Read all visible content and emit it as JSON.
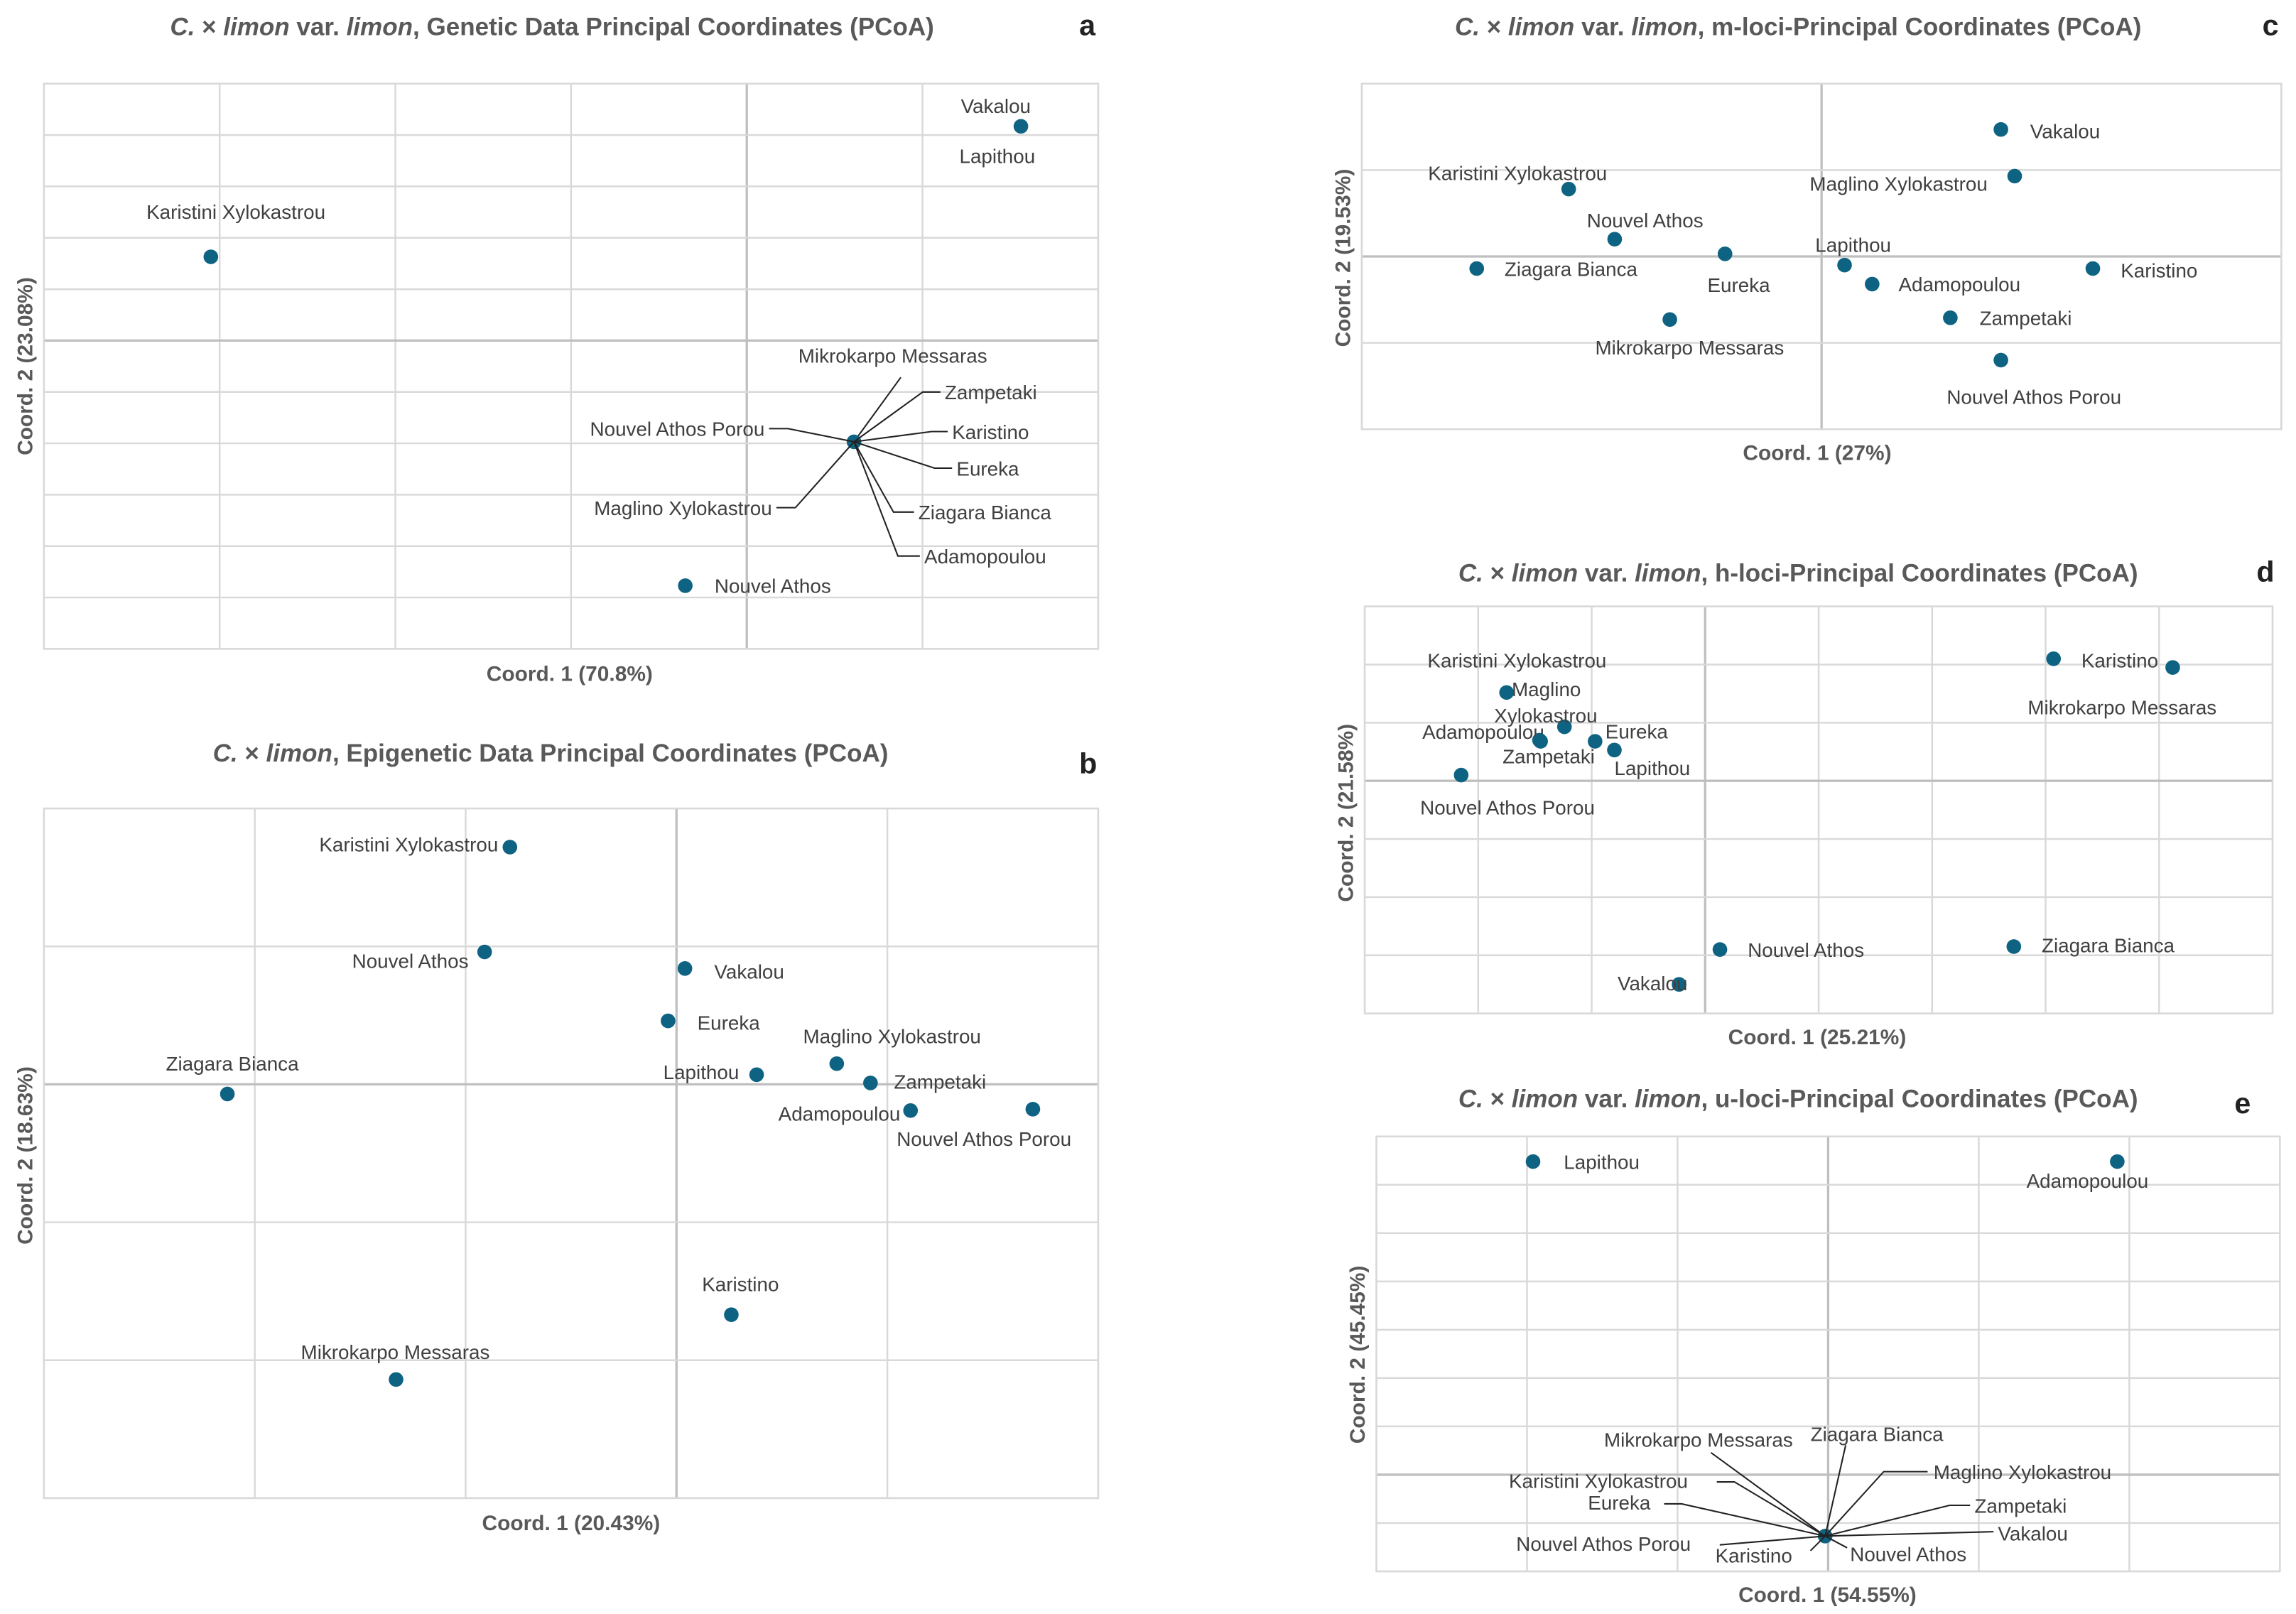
{
  "colors": {
    "point": "#0f6382",
    "grid": "#d9d9d9",
    "text": "#595959"
  },
  "chart_data": [
    {
      "id": "a",
      "type": "scatter",
      "panel_letter": "a",
      "title_parts": [
        {
          "t": "C.",
          "i": true
        },
        {
          "t": " × ",
          "i": false
        },
        {
          "t": "limon",
          "i": true
        },
        {
          "t": " var. ",
          "i": false
        },
        {
          "t": "limon",
          "i": true
        },
        {
          "t": ", Genetic Data Principal Coordinates (PCoA)",
          "i": false
        }
      ],
      "xlabel": "Coord. 1 (70.8%)",
      "ylabel": "Coord. 2 (23.08%)",
      "xlim": [
        -4,
        2
      ],
      "ylim": [
        -6,
        5
      ],
      "grid": true,
      "points": [
        {
          "name": "Vakalou",
          "x": 1.56,
          "y": 4.17
        },
        {
          "name": "Lapithou",
          "x": 1.56,
          "y": 4.17
        },
        {
          "name": "Karistini Xylokastrou",
          "x": -3.05,
          "y": 1.63
        },
        {
          "name": "Mikrokarpo Messaras",
          "x": 0.61,
          "y": -1.97
        },
        {
          "name": "Zampetaki",
          "x": 0.61,
          "y": -1.97
        },
        {
          "name": "Karistino",
          "x": 0.61,
          "y": -1.97
        },
        {
          "name": "Eureka",
          "x": 0.61,
          "y": -1.97
        },
        {
          "name": "Ziagara Bianca",
          "x": 0.61,
          "y": -1.97
        },
        {
          "name": "Adamopoulou",
          "x": 0.61,
          "y": -1.97
        },
        {
          "name": "Nouvel Athos Porou",
          "x": 0.61,
          "y": -1.97
        },
        {
          "name": "Maglino Xylokastrou",
          "x": 0.61,
          "y": -1.97
        },
        {
          "name": "Nouvel Athos",
          "x": -0.35,
          "y": -4.77
        }
      ]
    },
    {
      "id": "b",
      "type": "scatter",
      "panel_letter": "b",
      "title_parts": [
        {
          "t": "C.",
          "i": true
        },
        {
          "t": " × ",
          "i": false
        },
        {
          "t": "limon",
          "i": true
        },
        {
          "t": ", Epigenetic Data Principal Coordinates (PCoA)",
          "i": false
        }
      ],
      "xlabel": "Coord. 1 (20.43%)",
      "ylabel": "Coord. 2 (18.63%)",
      "xlim": [
        -3,
        2
      ],
      "ylim": [
        -3,
        2
      ],
      "grid": true,
      "points": [
        {
          "name": "Karistini Xylokastrou",
          "x": -0.79,
          "y": 1.72
        },
        {
          "name": "Nouvel Athos",
          "x": -0.91,
          "y": 0.96
        },
        {
          "name": "Vakalou",
          "x": 0.04,
          "y": 0.84
        },
        {
          "name": "Eureka",
          "x": -0.04,
          "y": 0.46
        },
        {
          "name": "Ziagara Bianca",
          "x": -2.13,
          "y": -0.07
        },
        {
          "name": "Maglino Xylokastrou",
          "x": 0.76,
          "y": 0.15
        },
        {
          "name": "Lapithou",
          "x": 0.38,
          "y": 0.07
        },
        {
          "name": "Zampetaki",
          "x": 0.92,
          "y": 0.01
        },
        {
          "name": "Adamopoulou",
          "x": 1.11,
          "y": -0.19
        },
        {
          "name": "Nouvel Athos Porou",
          "x": 1.69,
          "y": -0.18
        },
        {
          "name": "Karistino",
          "x": 0.26,
          "y": -1.67
        },
        {
          "name": "Mikrokarpo Messaras",
          "x": -1.33,
          "y": -2.14
        }
      ]
    },
    {
      "id": "c",
      "type": "scatter",
      "panel_letter": "c",
      "title_parts": [
        {
          "t": "C.",
          "i": true
        },
        {
          "t": " × ",
          "i": false
        },
        {
          "t": "limon",
          "i": true
        },
        {
          "t": " var. ",
          "i": false
        },
        {
          "t": "limon",
          "i": true
        },
        {
          "t": ", m-loci-Principal Coordinates (PCoA)",
          "i": false
        }
      ],
      "xlabel": "Coord. 1 (27%)",
      "ylabel": "Coord. 2 (19.53%)",
      "xlim": [
        -1,
        1
      ],
      "ylim": [
        -2,
        2
      ],
      "grid": true,
      "points": [
        {
          "name": "Vakalou",
          "x": 0.39,
          "y": 1.47
        },
        {
          "name": "Maglino Xylokastrou",
          "x": 0.42,
          "y": 0.93
        },
        {
          "name": "Karistini Xylokastrou",
          "x": -0.55,
          "y": 0.78
        },
        {
          "name": "Nouvel Athos",
          "x": -0.45,
          "y": 0.2
        },
        {
          "name": "Eureka",
          "x": -0.21,
          "y": 0.03
        },
        {
          "name": "Ziagara Bianca",
          "x": -0.75,
          "y": -0.14
        },
        {
          "name": "Lapithou",
          "x": 0.05,
          "y": -0.1
        },
        {
          "name": "Karistino",
          "x": 0.59,
          "y": -0.14
        },
        {
          "name": "Adamopoulou",
          "x": 0.11,
          "y": -0.32
        },
        {
          "name": "Mikrokarpo Messaras",
          "x": -0.33,
          "y": -0.73
        },
        {
          "name": "Zampetaki",
          "x": 0.28,
          "y": -0.71
        },
        {
          "name": "Nouvel Athos Porou",
          "x": 0.39,
          "y": -1.2
        }
      ]
    },
    {
      "id": "d",
      "type": "scatter",
      "panel_letter": "d",
      "title_parts": [
        {
          "t": "C.",
          "i": true
        },
        {
          "t": " × ",
          "i": false
        },
        {
          "t": "limon",
          "i": true
        },
        {
          "t": " var. ",
          "i": false
        },
        {
          "t": "limon",
          "i": true
        },
        {
          "t": ", h-loci-Principal Coordinates (PCoA)",
          "i": false
        }
      ],
      "xlabel": "Coord. 1 (25.21%)",
      "ylabel": "Coord. 2 (21.58%)",
      "xlim": [
        -3,
        5
      ],
      "ylim": [
        -4,
        3
      ],
      "grid": true,
      "points": [
        {
          "name": "Karistino",
          "x": 3.07,
          "y": 2.1
        },
        {
          "name": "Mikrokarpo Messaras",
          "x": 4.12,
          "y": 1.95
        },
        {
          "name": "Karistini Xylokastrou",
          "x": -1.75,
          "y": 1.52
        },
        {
          "name": "Maglino Xylokastrou",
          "x": -1.24,
          "y": 0.93
        },
        {
          "name": "Adamopoulou",
          "x": -1.46,
          "y": 0.7
        },
        {
          "name": "Eureka",
          "x": -0.97,
          "y": 0.68
        },
        {
          "name": "Zampetaki",
          "x": -1.45,
          "y": 0.68
        },
        {
          "name": "Lapithou",
          "x": -0.8,
          "y": 0.53
        },
        {
          "name": "Nouvel Athos Porou",
          "x": -2.15,
          "y": 0.1
        },
        {
          "name": "Nouvel Athos",
          "x": 0.13,
          "y": -2.9
        },
        {
          "name": "Ziagara Bianca",
          "x": 2.72,
          "y": -2.85
        },
        {
          "name": "Vakalou",
          "x": -0.23,
          "y": -3.5
        }
      ]
    },
    {
      "id": "e",
      "type": "scatter",
      "panel_letter": "e",
      "title_parts": [
        {
          "t": "C.",
          "i": true
        },
        {
          "t": " × ",
          "i": false
        },
        {
          "t": "limon",
          "i": true
        },
        {
          "t": " var. ",
          "i": false
        },
        {
          "t": "limon",
          "i": true
        },
        {
          "t": ", u-loci-Principal Coordinates (PCoA)",
          "i": false
        }
      ],
      "xlabel": "Coord. 1 (54.55%)",
      "ylabel": "Coord. 2 (45.45%)",
      "xlim": [
        -3,
        3
      ],
      "ylim": [
        -2,
        7
      ],
      "grid": true,
      "points": [
        {
          "name": "Lapithou",
          "x": -1.96,
          "y": 6.48
        },
        {
          "name": "Adamopoulou",
          "x": 1.92,
          "y": 6.48
        },
        {
          "name": "Mikrokarpo Messaras",
          "x": -0.02,
          "y": -1.27
        },
        {
          "name": "Ziagara Bianca",
          "x": -0.02,
          "y": -1.27
        },
        {
          "name": "Maglino Xylokastrou",
          "x": -0.02,
          "y": -1.27
        },
        {
          "name": "Karistini Xylokastrou",
          "x": -0.02,
          "y": -1.27
        },
        {
          "name": "Eureka",
          "x": -0.02,
          "y": -1.27
        },
        {
          "name": "Zampetaki",
          "x": -0.02,
          "y": -1.27
        },
        {
          "name": "Vakalou",
          "x": -0.02,
          "y": -1.27
        },
        {
          "name": "Nouvel Athos Porou",
          "x": -0.02,
          "y": -1.27
        },
        {
          "name": "Karistino",
          "x": -0.02,
          "y": -1.27
        },
        {
          "name": "Nouvel Athos",
          "x": -0.02,
          "y": -1.27
        }
      ]
    }
  ]
}
